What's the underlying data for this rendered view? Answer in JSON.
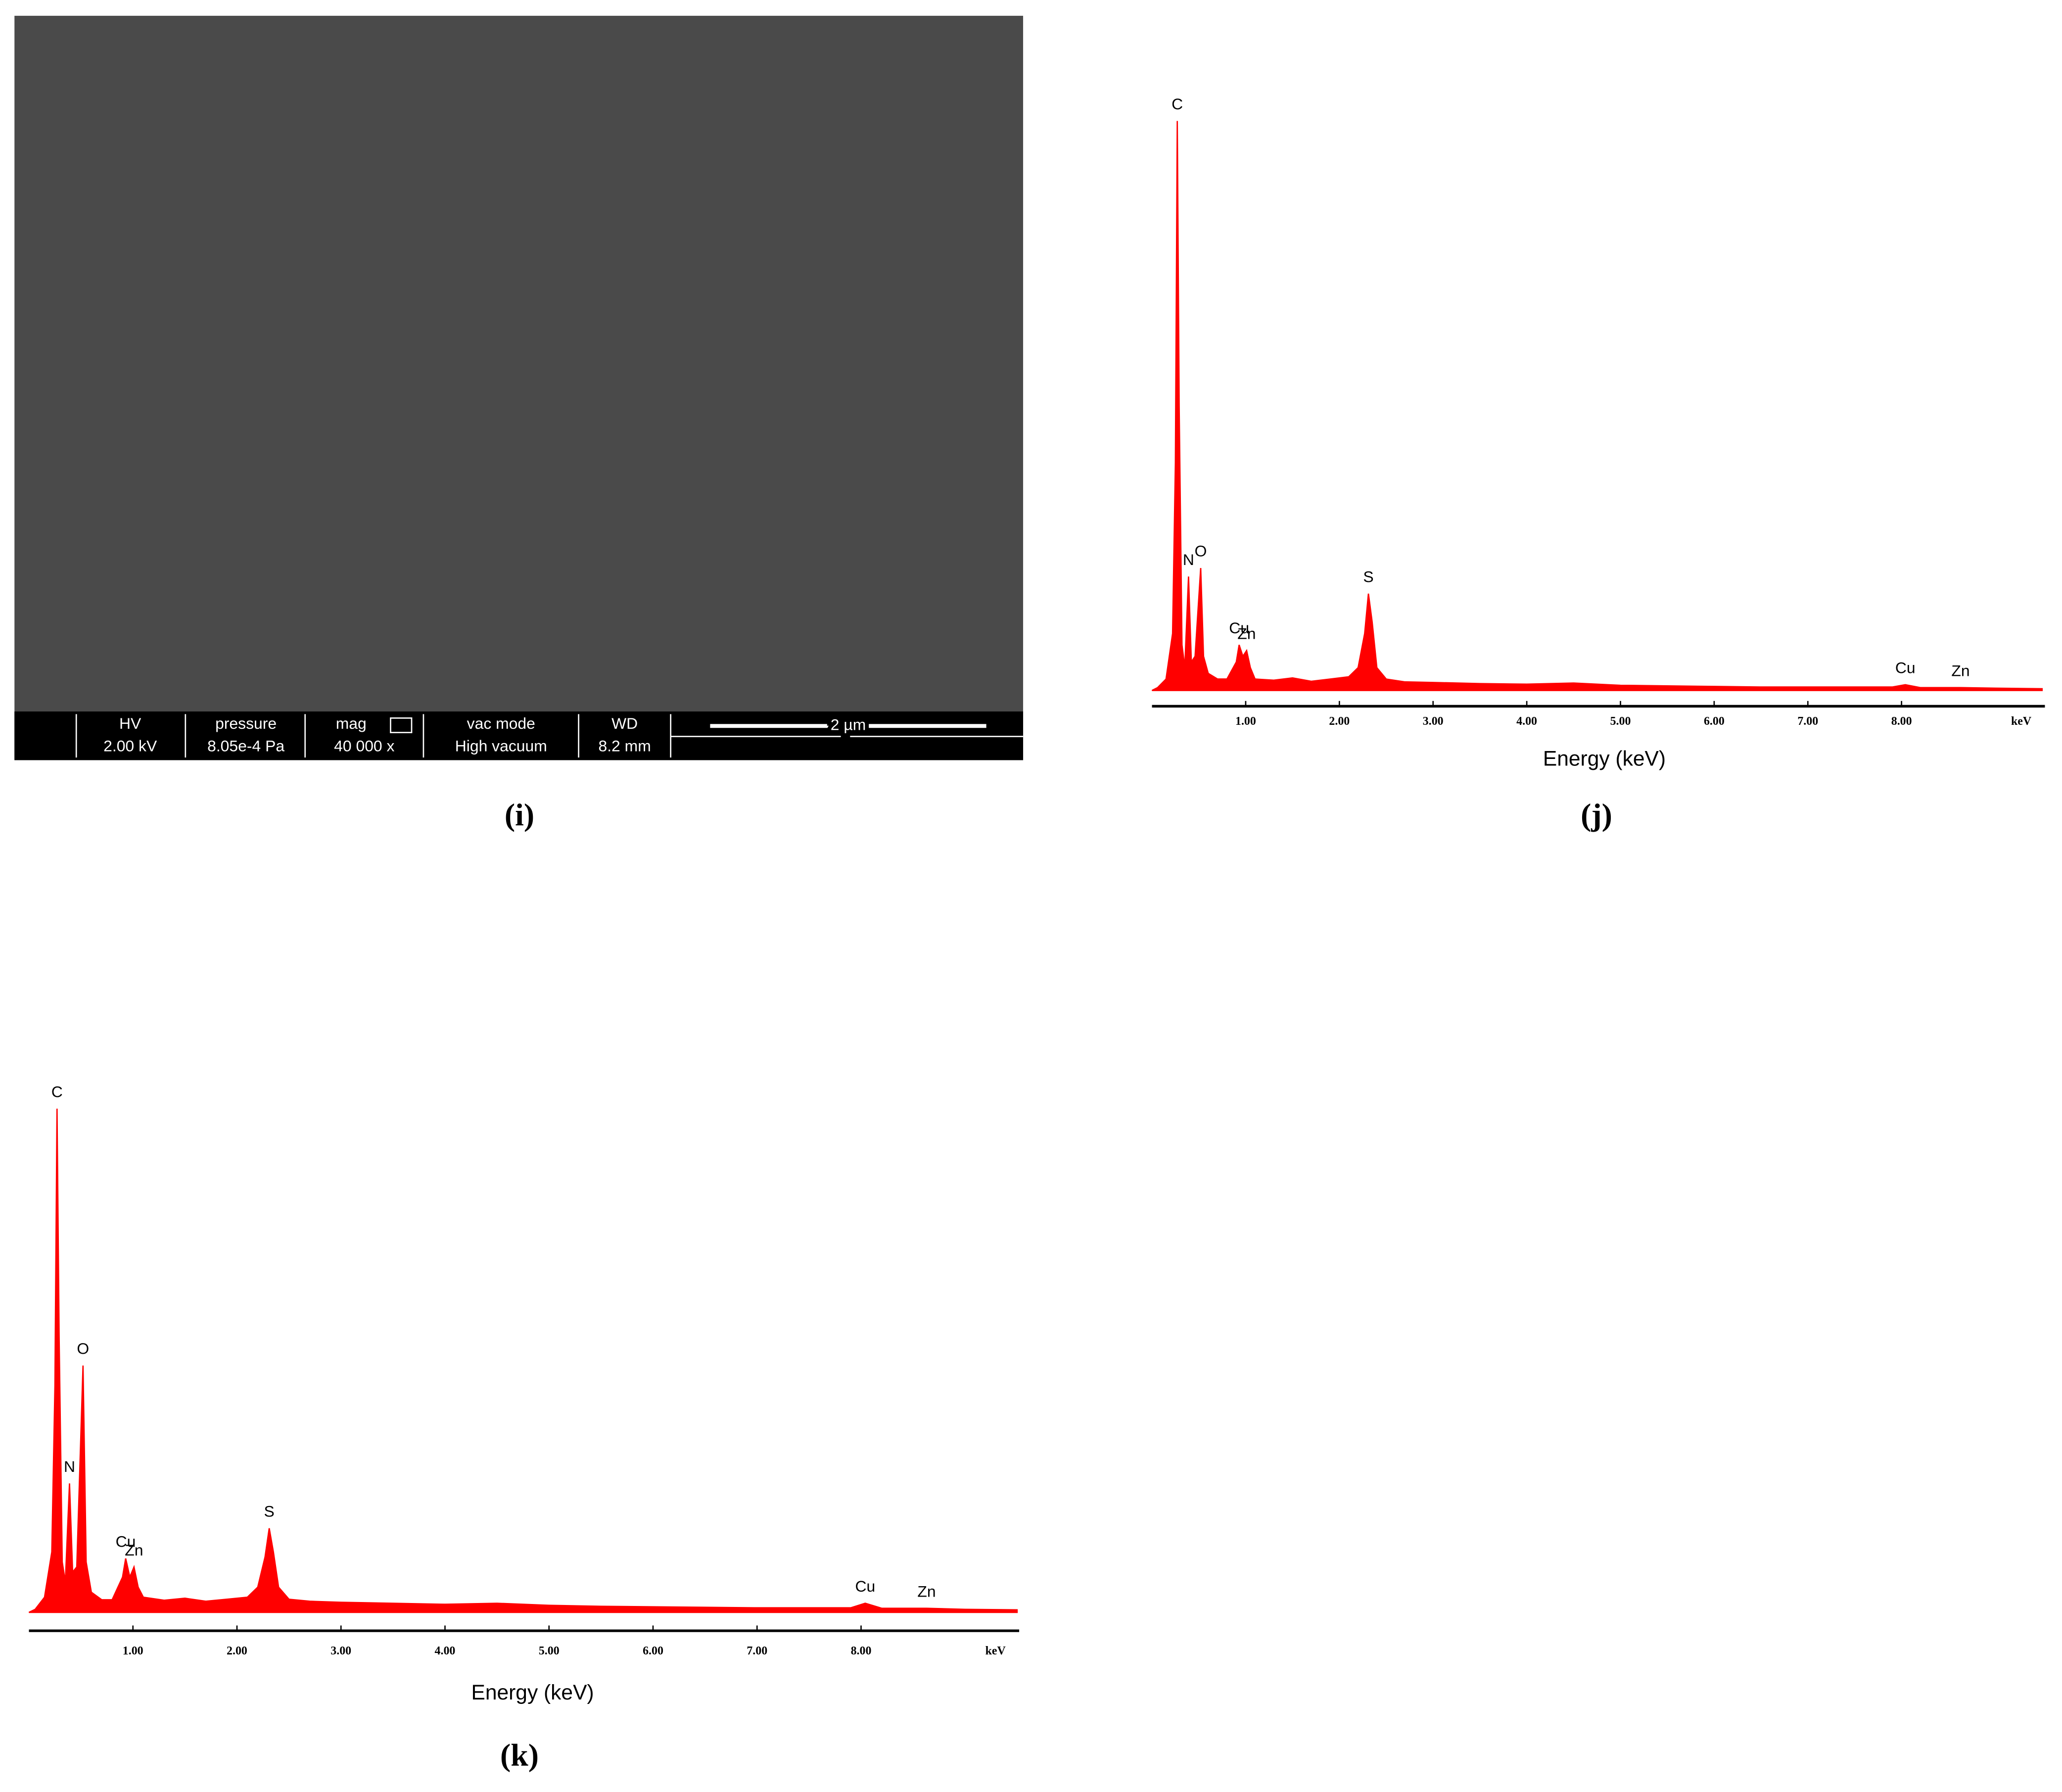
{
  "sem": {
    "hv_label": "HV",
    "hv": "2.00 kV",
    "pressure_label": "pressure",
    "pressure": "8.05e-4 Pa",
    "mag_label": "mag",
    "mag": "40 000 x",
    "vac_label": "vac mode",
    "vac": "High vacuum",
    "wd_label": "WD",
    "wd": "8.2 mm",
    "scale": "2 µm"
  },
  "captions": [
    "(i)",
    "(j)",
    "(k)"
  ],
  "chart_data": [
    {
      "type": "area",
      "color": "#ff0000",
      "x_label": "Energy (keV)",
      "x_unit": "keV",
      "xlim": [
        0,
        9.53
      ],
      "ylim": [
        0,
        100
      ],
      "xticks": [
        {
          "value": 1,
          "label": "1.00"
        },
        {
          "value": 2,
          "label": "2.00"
        },
        {
          "value": 3,
          "label": "3.00"
        },
        {
          "value": 4,
          "label": "4.00"
        },
        {
          "value": 5,
          "label": "5.00"
        },
        {
          "value": 6,
          "label": "6.00"
        },
        {
          "value": 7,
          "label": "7.00"
        },
        {
          "value": 8,
          "label": "8.00"
        }
      ],
      "x": [
        0,
        0.06,
        0.15,
        0.22,
        0.25,
        0.27,
        0.29,
        0.32,
        0.35,
        0.39,
        0.42,
        0.46,
        0.52,
        0.55,
        0.6,
        0.7,
        0.8,
        0.9,
        0.93,
        0.97,
        1.01,
        1.05,
        1.1,
        1.3,
        1.5,
        1.7,
        1.9,
        2.1,
        2.2,
        2.27,
        2.31,
        2.35,
        2.4,
        2.5,
        2.7,
        3.0,
        3.5,
        4.0,
        4.5,
        5.0,
        5.5,
        6.0,
        6.5,
        7.0,
        7.5,
        7.9,
        8.04,
        8.2,
        8.63,
        9.0,
        9.5
      ],
      "values": [
        0,
        0.5,
        2,
        10,
        40,
        100,
        50,
        8,
        4,
        20,
        5,
        6,
        21.5,
        6,
        3,
        2,
        2,
        5,
        8,
        6,
        7,
        4,
        2,
        1.8,
        2.2,
        1.6,
        2,
        2.4,
        4,
        10,
        17,
        12,
        4,
        2,
        1.5,
        1.4,
        1.2,
        1.1,
        1.3,
        0.9,
        0.8,
        0.7,
        0.6,
        0.6,
        0.6,
        0.6,
        1,
        0.5,
        0.5,
        0.4,
        0.3
      ],
      "peaks": [
        {
          "label": "C",
          "x": 0.27
        },
        {
          "label": "N",
          "x": 0.39
        },
        {
          "label": "O",
          "x": 0.52
        },
        {
          "label": "Cu",
          "x": 0.93
        },
        {
          "label": "Zn",
          "x": 1.01
        },
        {
          "label": "S",
          "x": 2.31
        },
        {
          "label": "Cu",
          "x": 8.04
        },
        {
          "label": "Zn",
          "x": 8.63
        }
      ]
    },
    {
      "type": "area",
      "color": "#ff0000",
      "x_label": "Energy (keV)",
      "x_unit": "keV",
      "xlim": [
        0,
        9.52
      ],
      "ylim": [
        0,
        100
      ],
      "xticks": [
        {
          "value": 1,
          "label": "1.00"
        },
        {
          "value": 2,
          "label": "2.00"
        },
        {
          "value": 3,
          "label": "3.00"
        },
        {
          "value": 4,
          "label": "4.00"
        },
        {
          "value": 5,
          "label": "5.00"
        },
        {
          "value": 6,
          "label": "6.00"
        },
        {
          "value": 7,
          "label": "7.00"
        },
        {
          "value": 8,
          "label": "8.00"
        }
      ],
      "x": [
        0,
        0.06,
        0.15,
        0.22,
        0.25,
        0.27,
        0.29,
        0.32,
        0.35,
        0.39,
        0.42,
        0.46,
        0.52,
        0.55,
        0.6,
        0.7,
        0.8,
        0.9,
        0.93,
        0.97,
        1.01,
        1.05,
        1.1,
        1.3,
        1.5,
        1.7,
        1.9,
        2.1,
        2.2,
        2.27,
        2.31,
        2.35,
        2.4,
        2.5,
        2.7,
        3.0,
        3.5,
        4.0,
        4.5,
        5.0,
        5.5,
        6.0,
        6.5,
        7.0,
        7.5,
        7.9,
        8.04,
        8.2,
        8.63,
        9.0,
        9.5
      ],
      "values": [
        0,
        0.6,
        3,
        12,
        45,
        100,
        55,
        10,
        6,
        25.6,
        8,
        9,
        49,
        10,
        4,
        2.5,
        2.5,
        7,
        10.7,
        7,
        9,
        5,
        3,
        2.4,
        2.8,
        2.2,
        2.6,
        3,
        5,
        11,
        16.7,
        12,
        5,
        2.6,
        2.2,
        2,
        1.8,
        1.6,
        1.8,
        1.4,
        1.2,
        1.1,
        1,
        0.9,
        0.9,
        0.9,
        1.8,
        0.8,
        0.8,
        0.6,
        0.5
      ],
      "peaks": [
        {
          "label": "C",
          "x": 0.27
        },
        {
          "label": "N",
          "x": 0.39
        },
        {
          "label": "O",
          "x": 0.52
        },
        {
          "label": "Cu",
          "x": 0.93
        },
        {
          "label": "Zn",
          "x": 1.01
        },
        {
          "label": "S",
          "x": 2.31
        },
        {
          "label": "Cu",
          "x": 8.04
        },
        {
          "label": "Zn",
          "x": 8.63
        }
      ]
    }
  ]
}
